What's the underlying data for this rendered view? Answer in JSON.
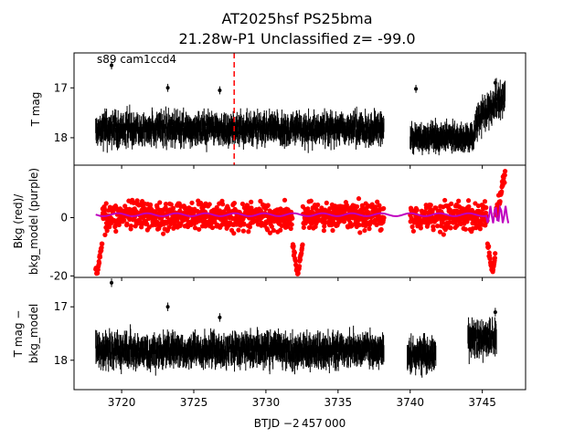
{
  "title": {
    "line1": "AT2025hsf  PS25bma",
    "line2": "21.28w-P1 Unclassified z= -99.0"
  },
  "panel_label": "s89 cam1ccd4",
  "xlabel": "BTJD −2 457 000",
  "colors": {
    "points": "#000000",
    "bkg": "#ff0000",
    "bkg_model": "#bf00bf",
    "marker_line": "#ff0000",
    "axes": "#000000"
  },
  "chart_data": [
    {
      "type": "scatter",
      "panel": "top",
      "ylabel": "T mag",
      "xlim": [
        3716.7,
        3748.0
      ],
      "ylim": [
        18.55,
        16.3
      ],
      "y_inverted": true,
      "xticks": [
        3720,
        3725,
        3730,
        3735,
        3740,
        3745
      ],
      "yticks": [
        17,
        18
      ],
      "marker_line_x": 3727.8,
      "segments": [
        {
          "x_start": 3718.2,
          "x_end": 3738.2,
          "y_mean": 17.82,
          "y_spread": 0.3
        },
        {
          "x_start": 3740.0,
          "x_end": 3744.5,
          "y_mean": 18.0,
          "y_spread": 0.22
        },
        {
          "x_start": 3744.5,
          "x_end": 3746.6,
          "y_mean": 17.4,
          "y_spread": 0.35
        }
      ],
      "outliers": [
        [
          3719.3,
          16.55
        ],
        [
          3723.2,
          17.0
        ],
        [
          3726.8,
          17.05
        ],
        [
          3740.4,
          17.02
        ],
        [
          3745.9,
          16.9
        ]
      ]
    },
    {
      "type": "scatter",
      "panel": "middle",
      "ylabel": "Bkg (red)/\nbkg_model (purple)",
      "xlim": [
        3716.7,
        3748.0
      ],
      "ylim": [
        -20.5,
        18.0
      ],
      "xticks": [
        3720,
        3725,
        3730,
        3735,
        3740,
        3745
      ],
      "yticks": [
        -20,
        0
      ],
      "series": [
        {
          "name": "Bkg",
          "x_start": 3718.2,
          "x_end": 3746.6,
          "y_mean": 0.5,
          "y_spread": 7.0
        },
        {
          "name": "bkg_model",
          "x_start": 3718.2,
          "x_end": 3746.8,
          "y_mean": 1.0
        }
      ],
      "dips": [
        [
          3718.3,
          -19.0
        ],
        [
          3732.2,
          -19.5
        ],
        [
          3745.7,
          -19.0
        ]
      ],
      "rise_end": [
        3746.6,
        16.5
      ]
    },
    {
      "type": "scatter",
      "panel": "bottom",
      "ylabel": "T mag −\nbkg_model",
      "xlim": [
        3716.7,
        3748.0
      ],
      "ylim": [
        18.55,
        16.45
      ],
      "y_inverted": true,
      "xticks": [
        3720,
        3725,
        3730,
        3735,
        3740,
        3745
      ],
      "yticks": [
        17,
        18
      ],
      "segments": [
        {
          "x_start": 3718.2,
          "x_end": 3738.2,
          "y_mean": 17.82,
          "y_spread": 0.3
        },
        {
          "x_start": 3739.8,
          "x_end": 3741.8,
          "y_mean": 17.9,
          "y_spread": 0.3
        },
        {
          "x_start": 3744.0,
          "x_end": 3746.0,
          "y_mean": 17.6,
          "y_spread": 0.35
        }
      ],
      "outliers": [
        [
          3719.3,
          16.55
        ],
        [
          3723.2,
          17.0
        ],
        [
          3726.8,
          17.2
        ],
        [
          3745.9,
          17.1
        ]
      ]
    }
  ]
}
